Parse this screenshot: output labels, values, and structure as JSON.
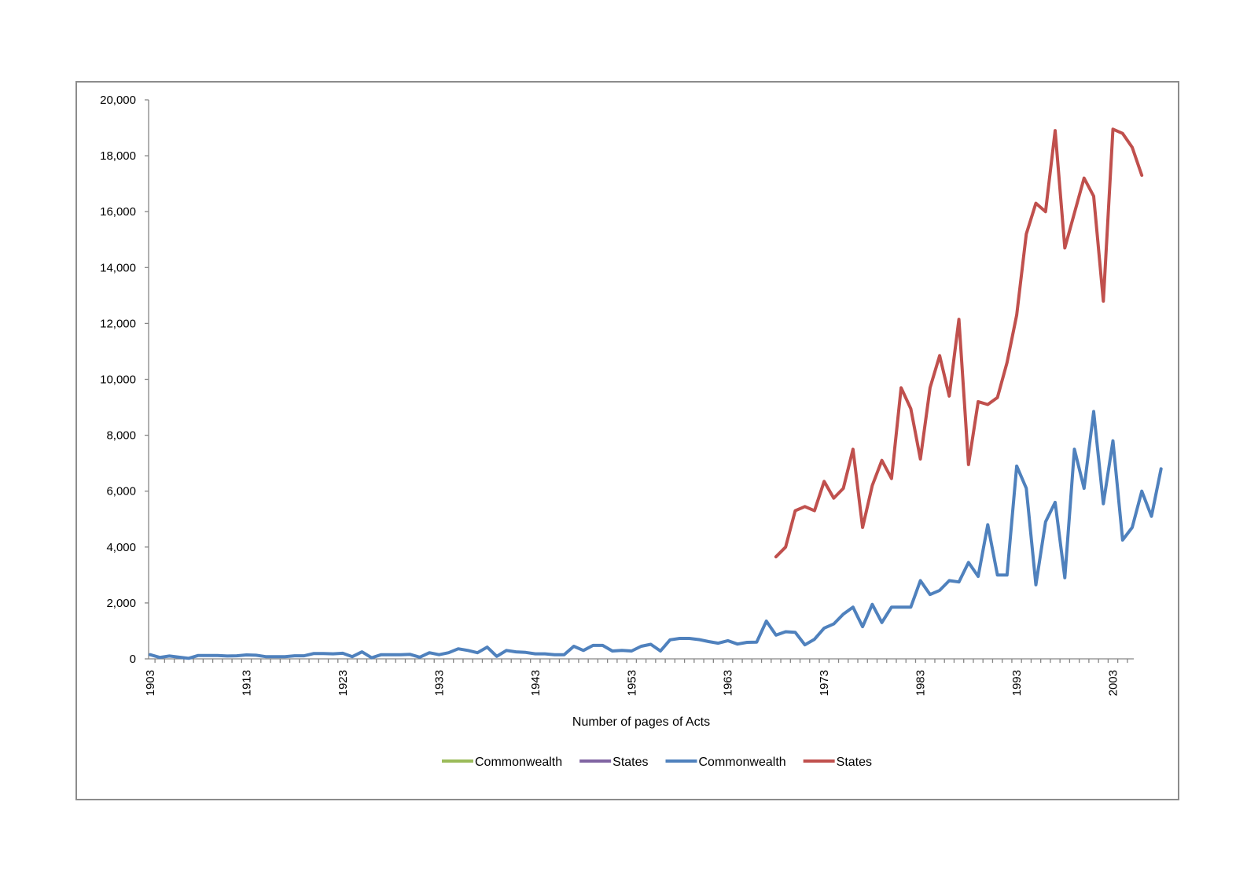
{
  "chart_data": {
    "type": "line",
    "title": "",
    "xlabel": "Number of pages of Acts",
    "ylabel": "",
    "ylim": [
      0,
      20000
    ],
    "yticks": [
      0,
      2000,
      4000,
      6000,
      8000,
      10000,
      12000,
      14000,
      16000,
      18000,
      20000
    ],
    "ytick_labels": [
      "0",
      "2,000",
      "4,000",
      "6,000",
      "8,000",
      "10,000",
      "12,000",
      "14,000",
      "16,000",
      "18,000",
      "20,000"
    ],
    "x_start": 1903,
    "x_end": 2005,
    "xtick_labels": [
      "1903",
      "1913",
      "1923",
      "1933",
      "1943",
      "1953",
      "1963",
      "1973",
      "1983",
      "1993",
      "2003"
    ],
    "legend_position": "bottom",
    "legend": [
      {
        "name": "Commonwealth",
        "color": "#9bbb59"
      },
      {
        "name": "States",
        "color": "#8064a2"
      },
      {
        "name": "Commonwealth",
        "color": "#4f81bd"
      },
      {
        "name": "States",
        "color": "#c0504d"
      }
    ],
    "series": [
      {
        "name": "Commonwealth",
        "color": "#4f81bd",
        "x_start": 1903,
        "values": [
          150,
          50,
          100,
          60,
          20,
          120,
          120,
          120,
          100,
          110,
          140,
          130,
          80,
          80,
          80,
          110,
          110,
          190,
          190,
          180,
          200,
          80,
          250,
          40,
          150,
          150,
          150,
          160,
          60,
          220,
          150,
          220,
          360,
          300,
          220,
          420,
          90,
          300,
          250,
          230,
          180,
          180,
          150,
          150,
          450,
          300,
          480,
          480,
          280,
          300,
          280,
          450,
          520,
          280,
          680,
          730,
          730,
          690,
          620,
          560,
          650,
          530,
          590,
          600,
          1350,
          850,
          970,
          950,
          500,
          700,
          1100,
          1250,
          1600,
          1850,
          1150,
          1950,
          1300,
          1850,
          1850,
          1850,
          2800,
          2300,
          2450,
          2800,
          2750,
          3450,
          2950,
          4800,
          3000,
          3000,
          6900,
          6100,
          2650,
          4900,
          5600,
          2900,
          7500,
          6100,
          8850,
          5550,
          7800,
          4250,
          4700,
          6000,
          5100,
          6800
        ]
      },
      {
        "name": "States",
        "color": "#c0504d",
        "x_start": 1968,
        "values": [
          3650,
          4000,
          5300,
          5450,
          5300,
          6350,
          5750,
          6100,
          7500,
          4700,
          6200,
          7100,
          6450,
          9700,
          8950,
          7150,
          9700,
          10850,
          9400,
          12150,
          6950,
          9200,
          9100,
          9350,
          10600,
          12300,
          15200,
          16300,
          16000,
          18900,
          14700,
          15950,
          17200,
          16550,
          12800,
          18950,
          18800,
          18300,
          17300
        ]
      }
    ]
  }
}
